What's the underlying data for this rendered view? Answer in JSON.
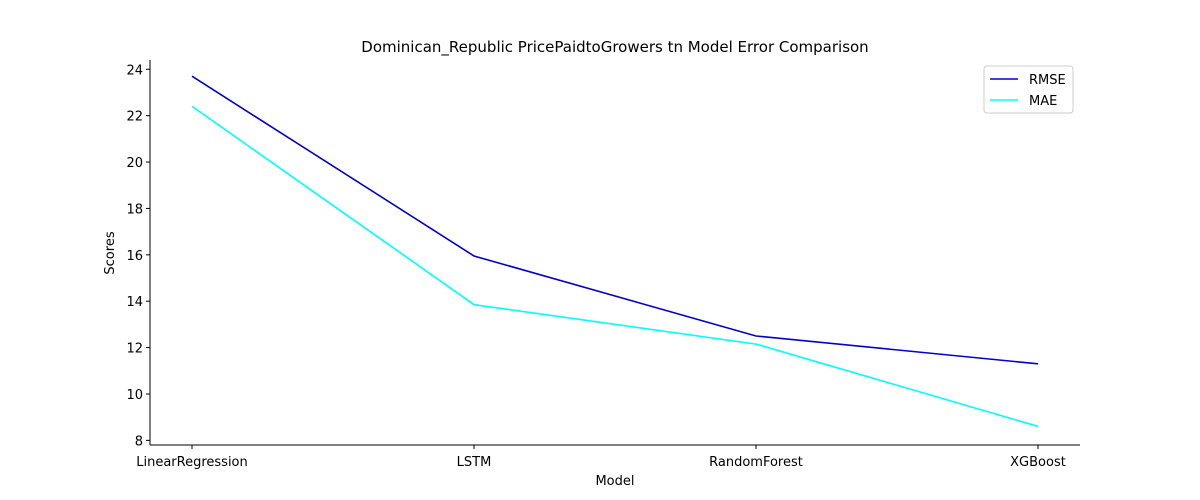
{
  "chart_data": {
    "type": "line",
    "title": "Dominican_Republic PricePaidtoGrowers tn Model Error Comparison",
    "xlabel": "Model",
    "ylabel": "Scores",
    "categories": [
      "LinearRegression",
      "LSTM",
      "RandomForest",
      "XGBoost"
    ],
    "ylim": [
      7.8,
      24.4
    ],
    "yticks": [
      8,
      10,
      12,
      14,
      16,
      18,
      20,
      22,
      24
    ],
    "grid": false,
    "legend_position": "top-right",
    "series": [
      {
        "name": "RMSE",
        "color": "#0000cd",
        "values": [
          23.7,
          15.95,
          12.5,
          11.3
        ]
      },
      {
        "name": "MAE",
        "color": "#00ffff",
        "values": [
          22.4,
          13.85,
          12.15,
          8.6
        ]
      }
    ]
  }
}
